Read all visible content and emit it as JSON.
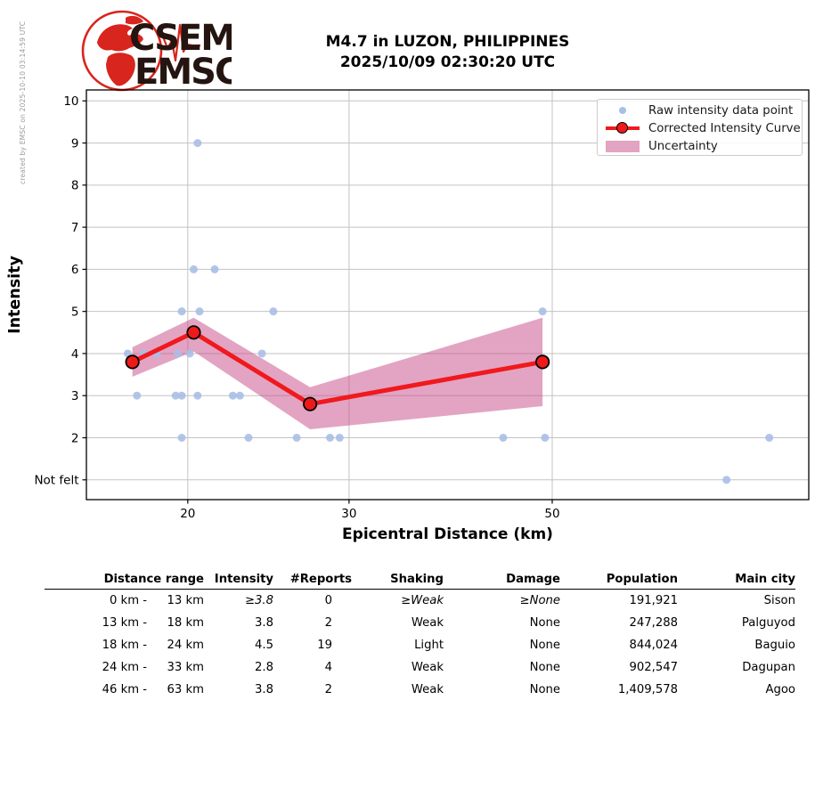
{
  "credit_text": "created by EMSC on 2025-10-10 03:14:59 UTC",
  "logo": {
    "top_text": "CSEM",
    "bottom_text": "EMSC"
  },
  "header": {
    "title_line1": "M4.7 in LUZON, PHILIPPINES",
    "title_line2": "2025/10/09 02:30:20 UTC"
  },
  "chart_data": {
    "type": "line",
    "title": "M4.7 in LUZON, PHILIPPINES 2025/10/09 02:30:20 UTC",
    "xlabel": "Epicentral Distance (km)",
    "ylabel": "Intensity",
    "x_scale": "log",
    "grid": true,
    "xlim": [
      15.5,
      95.3
    ],
    "ylim": [
      0.53,
      10.26
    ],
    "x_ticks": [
      {
        "value": 20,
        "label": "20"
      },
      {
        "value": 30,
        "label": "30"
      },
      {
        "value": 50,
        "label": "50"
      }
    ],
    "y_ticks": [
      {
        "value": 1,
        "label": "Not felt"
      },
      {
        "value": 2,
        "label": "2"
      },
      {
        "value": 3,
        "label": "3"
      },
      {
        "value": 4,
        "label": "4"
      },
      {
        "value": 5,
        "label": "5"
      },
      {
        "value": 6,
        "label": "6"
      },
      {
        "value": 7,
        "label": "7"
      },
      {
        "value": 8,
        "label": "8"
      },
      {
        "value": 9,
        "label": "9"
      },
      {
        "value": 10,
        "label": "10"
      }
    ],
    "legend": {
      "position": "upper right",
      "entries": [
        "Raw intensity data point",
        "Corrected Intensity Curve",
        "Uncertainty"
      ]
    },
    "series": [
      {
        "name": "Raw intensity data point",
        "type": "scatter",
        "points": [
          [
            20.5,
            9
          ],
          [
            20.3,
            6
          ],
          [
            21.4,
            6
          ],
          [
            19.7,
            5
          ],
          [
            20.6,
            5
          ],
          [
            24.8,
            5
          ],
          [
            48.8,
            5
          ],
          [
            17.2,
            4
          ],
          [
            17.9,
            4
          ],
          [
            18.5,
            4
          ],
          [
            19.5,
            4
          ],
          [
            20.1,
            4
          ],
          [
            24.1,
            4
          ],
          [
            17.6,
            3
          ],
          [
            19.4,
            3
          ],
          [
            19.7,
            3
          ],
          [
            20.5,
            3
          ],
          [
            22.4,
            3
          ],
          [
            22.8,
            3
          ],
          [
            19.7,
            2
          ],
          [
            23.3,
            2
          ],
          [
            26.3,
            2
          ],
          [
            28.6,
            2
          ],
          [
            29.3,
            2
          ],
          [
            44.2,
            2
          ],
          [
            49.1,
            2
          ],
          [
            86.3,
            2
          ],
          [
            77.5,
            1
          ]
        ]
      },
      {
        "name": "Corrected Intensity Curve",
        "type": "line",
        "x": [
          17.4,
          20.3,
          27.2,
          48.8
        ],
        "y": [
          3.8,
          4.5,
          2.8,
          3.8
        ]
      },
      {
        "name": "Uncertainty",
        "type": "band",
        "x": [
          17.4,
          20.3,
          27.2,
          48.8
        ],
        "upper": [
          4.15,
          4.85,
          3.2,
          4.85
        ],
        "lower": [
          3.45,
          4.05,
          2.2,
          2.75
        ]
      }
    ],
    "colors": {
      "raw_point": "#a9bfe6",
      "curve": "#f0191d",
      "marker_fill": "#ee1a1a",
      "marker_edge": "#000000",
      "band": "#c54985",
      "band_opacity": 0.5,
      "grid": "#c3c3c3",
      "frame": "#000000",
      "logo_red": "#d8251d",
      "logo_text": "#241511"
    }
  },
  "table": {
    "headers": [
      "Distance range",
      "Intensity",
      "#Reports",
      "Shaking",
      "Damage",
      "Population",
      "Main city"
    ],
    "rows": [
      {
        "from": "0 km -",
        "to": "13 km",
        "intensity": "≥3.8",
        "reports": "0",
        "shaking": "≥Weak",
        "damage": "≥None",
        "population": "191,921",
        "city": "Sison",
        "estimated": true
      },
      {
        "from": "13 km -",
        "to": "18 km",
        "intensity": "3.8",
        "reports": "2",
        "shaking": "Weak",
        "damage": "None",
        "population": "247,288",
        "city": "Palguyod",
        "estimated": false
      },
      {
        "from": "18 km -",
        "to": "24 km",
        "intensity": "4.5",
        "reports": "19",
        "shaking": "Light",
        "damage": "None",
        "population": "844,024",
        "city": "Baguio",
        "estimated": false
      },
      {
        "from": "24 km -",
        "to": "33 km",
        "intensity": "2.8",
        "reports": "4",
        "shaking": "Weak",
        "damage": "None",
        "population": "902,547",
        "city": "Dagupan",
        "estimated": false
      },
      {
        "from": "46 km -",
        "to": "63 km",
        "intensity": "3.8",
        "reports": "2",
        "shaking": "Weak",
        "damage": "None",
        "population": "1,409,578",
        "city": "Agoo",
        "estimated": false
      }
    ]
  }
}
